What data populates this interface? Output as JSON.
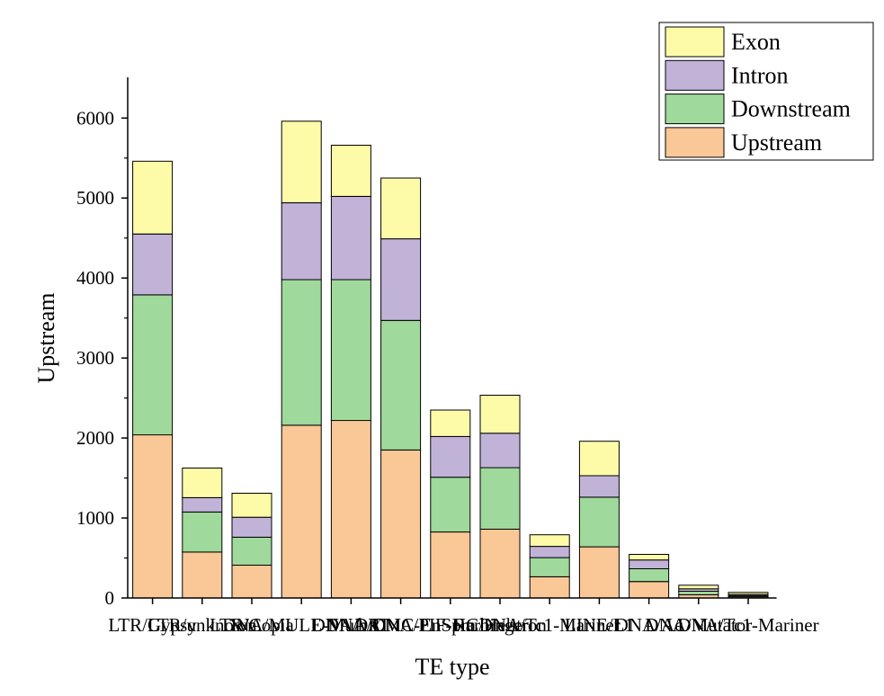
{
  "chart_data": {
    "type": "bar",
    "stacked": true,
    "xlabel": "TE type",
    "ylabel": "Upstream",
    "ylim": [
      0,
      6500
    ],
    "yticks": [
      0,
      1000,
      2000,
      3000,
      4000,
      5000,
      6000
    ],
    "grid": false,
    "legend_position": "top-right",
    "categories": [
      "LTR/Gypsy",
      "LTR/unknown",
      "LTR/Copia",
      "DNA/MULE-MuDR",
      "DNA/hAT",
      "DNA/CMC-EnSpm",
      "DNA/PIF-Harbinger",
      "RC/Helitron",
      "DNA/Tc1-Mariner",
      "LINE/L1",
      "DNA/Ac",
      "DNA/Mutator",
      "DNA/Tc1-Mariner"
    ],
    "series": [
      {
        "name": "Upstream",
        "color": "#fac796",
        "values": [
          2040,
          575,
          410,
          2160,
          2220,
          1850,
          825,
          860,
          265,
          640,
          205,
          40,
          15
        ]
      },
      {
        "name": "Downstream",
        "color": "#9fd99b",
        "values": [
          1750,
          500,
          350,
          1820,
          1760,
          1620,
          685,
          770,
          240,
          620,
          160,
          45,
          15
        ]
      },
      {
        "name": "Intron",
        "color": "#c1b3d8",
        "values": [
          760,
          180,
          250,
          960,
          1040,
          1020,
          510,
          430,
          140,
          270,
          110,
          30,
          15
        ]
      },
      {
        "name": "Exon",
        "color": "#fdfba8",
        "values": [
          910,
          370,
          300,
          1020,
          640,
          760,
          330,
          475,
          145,
          430,
          70,
          45,
          25
        ]
      }
    ]
  }
}
